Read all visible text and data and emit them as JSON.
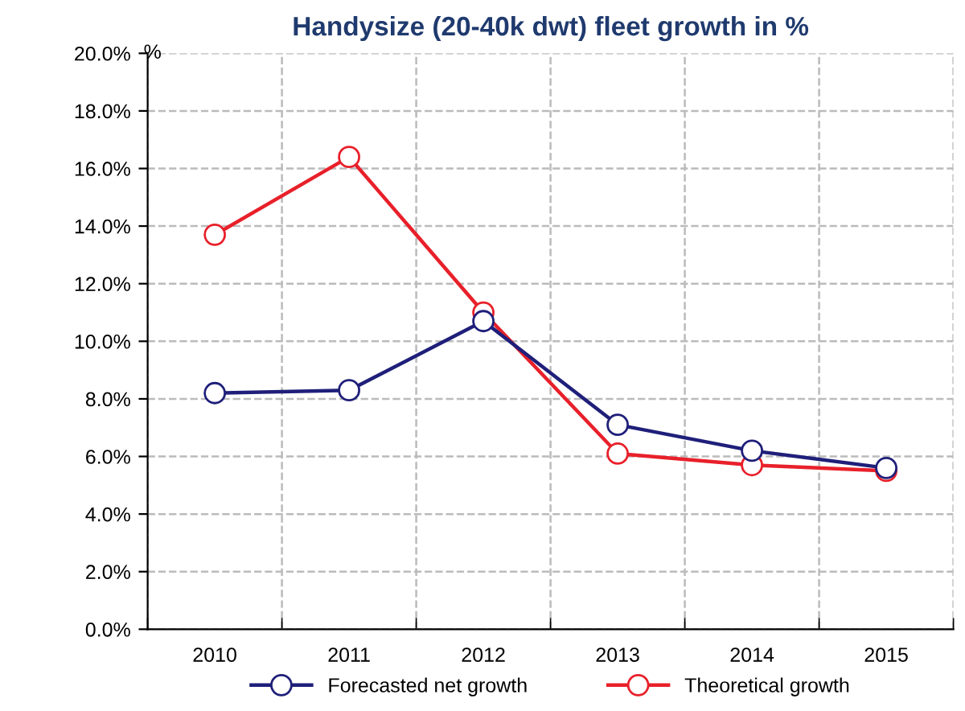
{
  "chart_data": {
    "type": "line",
    "title": "Handysize (20-40k dwt) fleet growth in %",
    "ylabel": "%",
    "categories": [
      "2010",
      "2011",
      "2012",
      "2013",
      "2014",
      "2015"
    ],
    "series": [
      {
        "name": "Forecasted net growth",
        "color": "#1f1f7a",
        "values": [
          8.2,
          8.3,
          10.7,
          7.1,
          6.2,
          5.6
        ]
      },
      {
        "name": "Theoretical growth",
        "color": "#e8202a",
        "values": [
          13.7,
          16.4,
          11.0,
          6.1,
          5.7,
          5.5
        ]
      }
    ],
    "ylim": [
      0,
      20
    ],
    "yticks": [
      {
        "value": 0,
        "label": "0.0%"
      },
      {
        "value": 2,
        "label": "2.0%"
      },
      {
        "value": 4,
        "label": "4.0%"
      },
      {
        "value": 6,
        "label": "6.0%"
      },
      {
        "value": 8,
        "label": "8.0%"
      },
      {
        "value": 10,
        "label": "10.0%"
      },
      {
        "value": 12,
        "label": "12.0%"
      },
      {
        "value": 14,
        "label": "14.0%"
      },
      {
        "value": 16,
        "label": "16.0%"
      },
      {
        "value": 18,
        "label": "18.0%"
      },
      {
        "value": 20,
        "label": "20.0%"
      }
    ],
    "grid": true,
    "legend": "bottom",
    "marker": "circle",
    "line_style": "solid"
  }
}
